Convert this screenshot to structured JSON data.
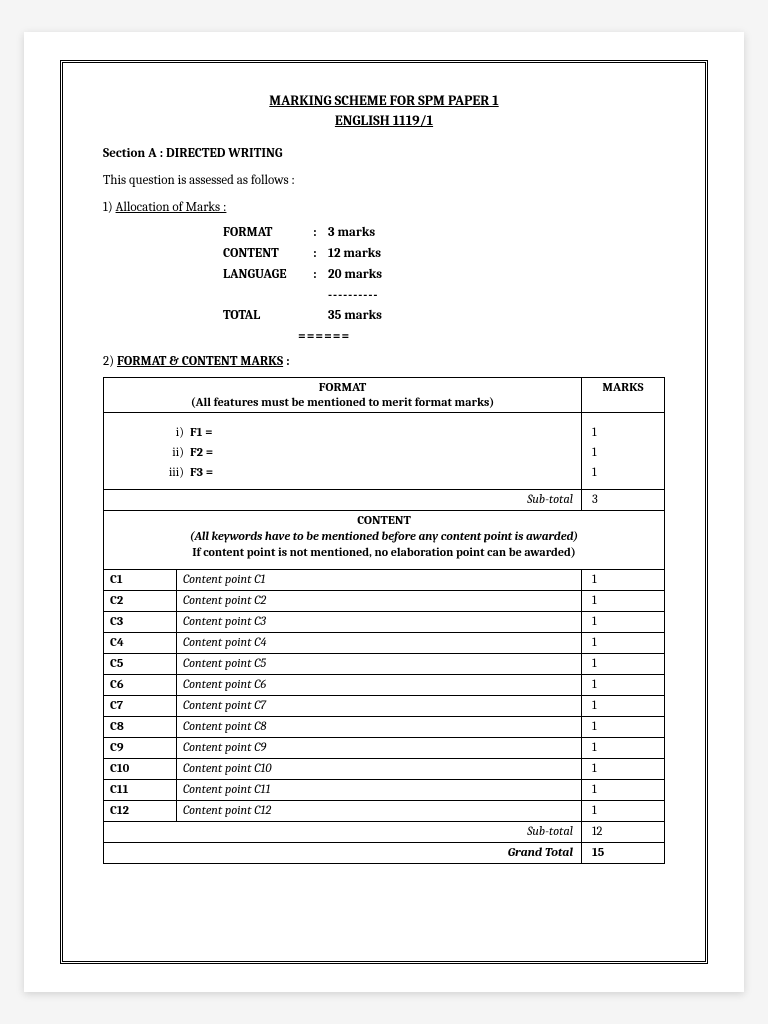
{
  "title_line1": "MARKING SCHEME FOR SPM PAPER 1",
  "title_line2": "ENGLISH 1119/1",
  "section_a": "Section A : DIRECTED WRITING",
  "assessed": "This question is assessed as follows :",
  "item1_prefix": "1)  ",
  "item1_label": "Allocation of Marks :",
  "alloc": {
    "format_label": "FORMAT",
    "format_val": "3 marks",
    "content_label": "CONTENT",
    "content_val": "12 marks",
    "language_label": "LANGUAGE",
    "language_val": "20 marks",
    "dashes": "----------",
    "total_label": "TOTAL",
    "total_val": "35 marks",
    "equals": "======"
  },
  "item2_prefix": "2)  ",
  "item2_label": "FORMAT & CONTENT MARKS",
  "item2_colon": " :",
  "format_header": "FORMAT",
  "format_sub": "(All features must be mentioned to merit format marks)",
  "marks_header": "MARKS",
  "f_rows": {
    "i_lbl": "i)",
    "i_val": "F1 =",
    "ii_lbl": "ii)",
    "ii_val": "F2 =",
    "iii_lbl": "iii)",
    "iii_val": "F3 ="
  },
  "f_marks": {
    "m1": "1",
    "m2": "1",
    "m3": "1"
  },
  "subtotal_label": "Sub-total",
  "format_subtotal": "3",
  "content_header": "CONTENT",
  "content_sub1": "(All keywords have to be mentioned before any content point is awarded)",
  "content_sub2": "If content point is not mentioned, no elaboration point can be awarded)",
  "content_rows": [
    {
      "code": "C1",
      "label": "Content point C1",
      "mark": "1"
    },
    {
      "code": "C2",
      "label": "Content point C2",
      "mark": "1"
    },
    {
      "code": "C3",
      "label": "Content point C3",
      "mark": "1"
    },
    {
      "code": "C4",
      "label": "Content point C4",
      "mark": "1"
    },
    {
      "code": "C5",
      "label": "Content point C5",
      "mark": "1"
    },
    {
      "code": "C6",
      "label": "Content point C6",
      "mark": "1"
    },
    {
      "code": "C7",
      "label": "Content point C7",
      "mark": "1"
    },
    {
      "code": "C8",
      "label": "Content point C8",
      "mark": "1"
    },
    {
      "code": "C9",
      "label": "Content point C9",
      "mark": "1"
    },
    {
      "code": "C10",
      "label": "Content point C10",
      "mark": "1"
    },
    {
      "code": "C11",
      "label": "Content point C11",
      "mark": "1"
    },
    {
      "code": "C12",
      "label": "Content point C12",
      "mark": "1"
    }
  ],
  "content_subtotal": "12",
  "grand_total_label": "Grand Total",
  "grand_total": "15"
}
